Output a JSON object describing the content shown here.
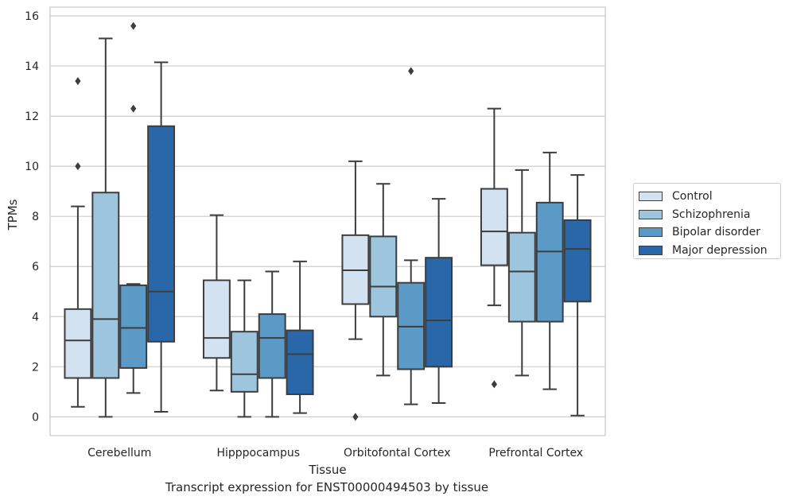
{
  "chart_data": {
    "type": "box",
    "xlabel": "Tissue",
    "ylabel": "TPMs",
    "caption": "Transcript expression for ENST00000494503 by tissue",
    "ylim": [
      -0.75,
      16.35
    ],
    "yticks": [
      0,
      2,
      4,
      6,
      8,
      10,
      12,
      14,
      16
    ],
    "grid": true,
    "legend_position": "right",
    "categories": [
      "Cerebellum",
      "Hipppocampus",
      "Orbitofontal Cortex",
      "Prefrontal Cortex"
    ],
    "series": [
      {
        "name": "Control",
        "color": "#d3e2f0",
        "boxes": [
          {
            "whisker_low": 0.4,
            "q1": 1.55,
            "median": 3.05,
            "q3": 4.3,
            "whisker_high": 8.4,
            "outliers": [
              10.0,
              13.4
            ]
          },
          {
            "whisker_low": 1.05,
            "q1": 2.35,
            "median": 3.15,
            "q3": 5.45,
            "whisker_high": 8.05,
            "outliers": []
          },
          {
            "whisker_low": 3.1,
            "q1": 4.5,
            "median": 5.85,
            "q3": 7.25,
            "whisker_high": 10.2,
            "outliers": [
              0.0
            ]
          },
          {
            "whisker_low": 4.45,
            "q1": 6.05,
            "median": 7.4,
            "q3": 9.1,
            "whisker_high": 12.3,
            "outliers": [
              1.3
            ]
          }
        ]
      },
      {
        "name": "Schizophrenia",
        "color": "#9dc5de",
        "boxes": [
          {
            "whisker_low": 0.0,
            "q1": 1.55,
            "median": 3.9,
            "q3": 8.95,
            "whisker_high": 15.1,
            "outliers": []
          },
          {
            "whisker_low": 0.0,
            "q1": 1.0,
            "median": 1.7,
            "q3": 3.4,
            "whisker_high": 5.45,
            "outliers": []
          },
          {
            "whisker_low": 1.65,
            "q1": 4.0,
            "median": 5.2,
            "q3": 7.2,
            "whisker_high": 9.3,
            "outliers": []
          },
          {
            "whisker_low": 1.65,
            "q1": 3.8,
            "median": 5.8,
            "q3": 7.35,
            "whisker_high": 9.85,
            "outliers": []
          }
        ]
      },
      {
        "name": "Bipolar disorder",
        "color": "#5b9ac7",
        "boxes": [
          {
            "whisker_low": 0.95,
            "q1": 1.95,
            "median": 3.55,
            "q3": 5.25,
            "whisker_high": 5.3,
            "outliers": [
              12.3,
              15.6
            ]
          },
          {
            "whisker_low": 0.0,
            "q1": 1.55,
            "median": 3.15,
            "q3": 4.1,
            "whisker_high": 5.8,
            "outliers": []
          },
          {
            "whisker_low": 0.5,
            "q1": 1.9,
            "median": 3.6,
            "q3": 5.35,
            "whisker_high": 6.25,
            "outliers": [
              13.8
            ]
          },
          {
            "whisker_low": 1.1,
            "q1": 3.8,
            "median": 6.6,
            "q3": 8.55,
            "whisker_high": 10.55,
            "outliers": []
          }
        ]
      },
      {
        "name": "Major depression",
        "color": "#2a67a8",
        "boxes": [
          {
            "whisker_low": 0.2,
            "q1": 3.0,
            "median": 5.0,
            "q3": 11.6,
            "whisker_high": 14.15,
            "outliers": []
          },
          {
            "whisker_low": 0.15,
            "q1": 0.9,
            "median": 2.5,
            "q3": 3.45,
            "whisker_high": 6.2,
            "outliers": []
          },
          {
            "whisker_low": 0.55,
            "q1": 2.0,
            "median": 3.85,
            "q3": 6.35,
            "whisker_high": 8.7,
            "outliers": []
          },
          {
            "whisker_low": 0.05,
            "q1": 4.6,
            "median": 6.7,
            "q3": 7.85,
            "whisker_high": 9.65,
            "outliers": []
          }
        ]
      }
    ]
  }
}
